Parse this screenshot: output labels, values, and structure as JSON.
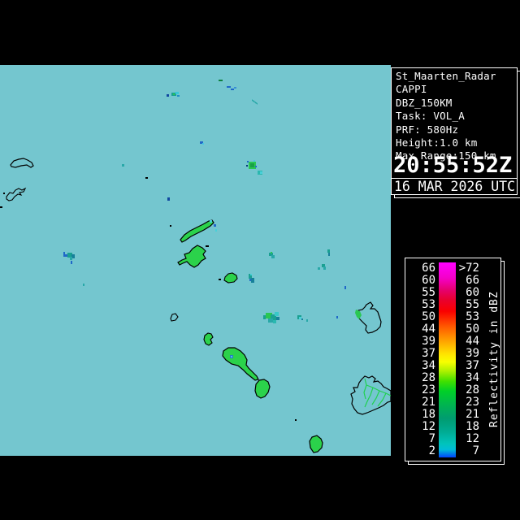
{
  "panel": {
    "lines": [
      "St_Maarten_Radar",
      "CAPPI",
      "DBZ_150KM",
      "Task: VOL_A",
      "PRF: 580Hz",
      "Height:1.0 km",
      "Max Range:150 km"
    ],
    "time": "20:55:52Z",
    "date": "16 MAR 2026 UTC"
  },
  "legend": {
    "title": "Reflectivity in dBZ",
    "rows": [
      {
        "left": "66",
        "right": ">72"
      },
      {
        "left": "60",
        "right": "66"
      },
      {
        "left": "55",
        "right": "60"
      },
      {
        "left": "53",
        "right": "55"
      },
      {
        "left": "50",
        "right": "53"
      },
      {
        "left": "44",
        "right": "50"
      },
      {
        "left": "39",
        "right": "44"
      },
      {
        "left": "37",
        "right": "39"
      },
      {
        "left": "34",
        "right": "37"
      },
      {
        "left": "28",
        "right": "34"
      },
      {
        "left": "23",
        "right": "28"
      },
      {
        "left": "21",
        "right": "23"
      },
      {
        "left": "18",
        "right": "21"
      },
      {
        "left": "12",
        "right": "18"
      },
      {
        "left": "7",
        "right": "12"
      },
      {
        "left": "2",
        "right": "7"
      }
    ],
    "gradient_stops": [
      "#FF00FF 0%",
      "#F400C8 8%",
      "#E60070 14%",
      "#E80030 19%",
      "#FA0000 25%",
      "#FF5A00 33%",
      "#FFA000 40%",
      "#FFE400 47%",
      "#F8FF00 51%",
      "#A8F000 56%",
      "#40E000 61%",
      "#00D028 66%",
      "#00B450 73%",
      "#009C70 80%",
      "#00AC94 87%",
      "#00C4BC 93%",
      "#00BCD8 96%",
      "#0080E8 98%",
      "#0044FF 100%"
    ]
  },
  "map": {
    "sea_color": "#74C6CF",
    "land_echo_green": "#2BD24B",
    "echo_teal": "#1AA092",
    "echo_blue": "#2068C8",
    "echo_cyan": "#48D0D8",
    "outline_color": "#000000"
  },
  "colors": {
    "background": "#000000",
    "panel_border": "#FFFFFF",
    "text": "#FFFFFF"
  }
}
